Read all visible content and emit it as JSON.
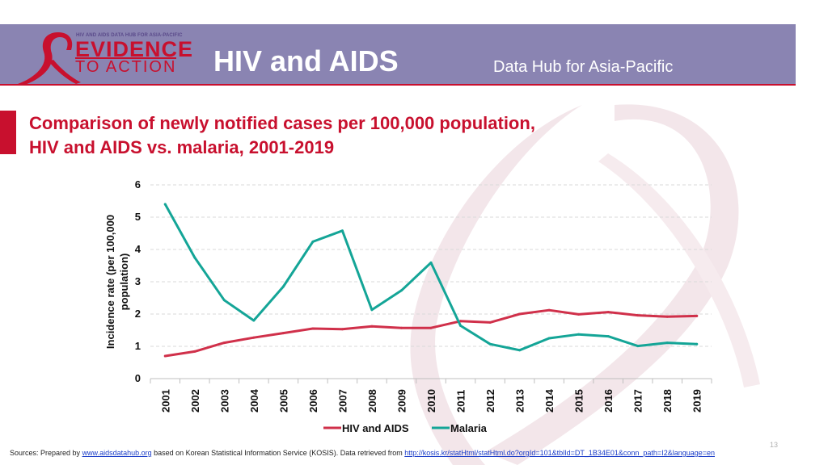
{
  "header": {
    "logo_tagline": "HIV AND AIDS DATA HUB FOR ASIA-PACIFIC",
    "logo_line1": "EVIDENCE",
    "logo_line2": "TO ACTION",
    "title": "HIV and AIDS",
    "subtitle": "Data Hub for Asia-Pacific"
  },
  "slide": {
    "title_line1": "Comparison of newly notified cases per 100,000 population,",
    "title_line2": "HIV and AIDS vs. malaria, 2001-2019",
    "page_number": "13"
  },
  "footer": {
    "prefix": "Sources: Prepared by ",
    "link1": "www.aidsdatahub.org",
    "middle": " based on Korean Statistical Information Service (KOSIS). Data retrieved from ",
    "link2": "http://kosis.kr/statHtml/statHtml.do?orgId=101&tblId=DT_1B34E01&conn_path=I2&language=en"
  },
  "colors": {
    "accent": "#c8102e",
    "header_bg": "#8a84b2",
    "hiv": "#d0304a",
    "malaria": "#14a597"
  },
  "chart_data": {
    "type": "line",
    "title": "Comparison of newly notified cases per 100,000 population, HIV and AIDS vs. malaria, 2001-2019",
    "xlabel": "",
    "ylabel_line1": "Incidence rate (per 100,000",
    "ylabel_line2": "population)",
    "ylim": [
      0,
      6
    ],
    "yticks": [
      "0",
      "1",
      "2",
      "3",
      "4",
      "5",
      "6"
    ],
    "grid": true,
    "legend_position": "bottom",
    "categories": [
      "2001",
      "2002",
      "2003",
      "2004",
      "2005",
      "2006",
      "2007",
      "2008",
      "2009",
      "2010",
      "2011",
      "2012",
      "2013",
      "2014",
      "2015",
      "2016",
      "2017",
      "2018",
      "2019"
    ],
    "series": [
      {
        "name": "HIV and AIDS",
        "color": "#d0304a",
        "values": [
          0.7,
          0.84,
          1.11,
          1.27,
          1.41,
          1.55,
          1.53,
          1.62,
          1.57,
          1.57,
          1.78,
          1.74,
          2.0,
          2.12,
          1.99,
          2.06,
          1.96,
          1.92,
          1.94
        ]
      },
      {
        "name": "Malaria",
        "color": "#14a597",
        "values": [
          5.4,
          3.75,
          2.43,
          1.8,
          2.85,
          4.24,
          4.58,
          2.13,
          2.73,
          3.59,
          1.64,
          1.07,
          0.88,
          1.25,
          1.37,
          1.31,
          1.01,
          1.11,
          1.07
        ]
      }
    ]
  }
}
